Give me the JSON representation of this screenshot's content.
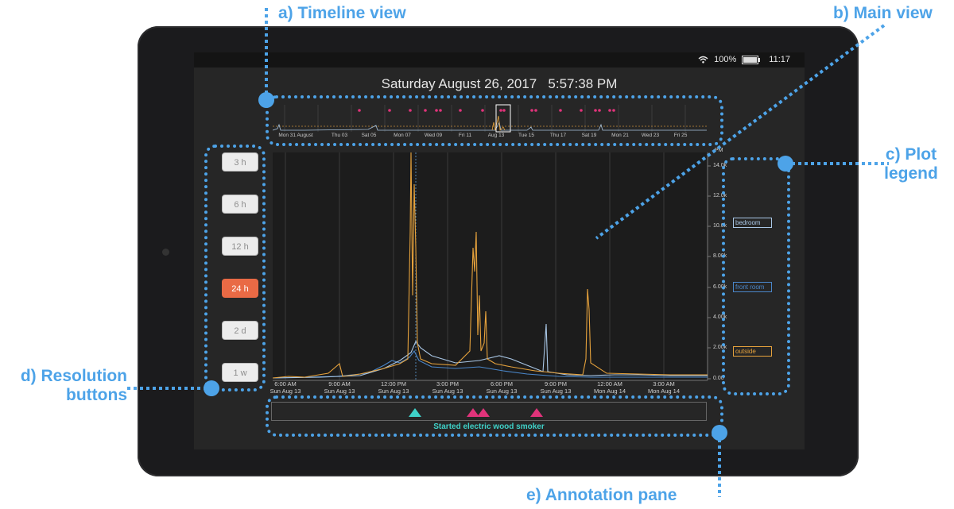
{
  "device": {
    "status": {
      "battery": "100%",
      "time": "11:17"
    },
    "datetime": "Saturday August 26, 2017   5:57:38 PM"
  },
  "timeline": {
    "labels": [
      "Mon 31 August",
      "Thu 03",
      "Sat 05",
      "Mon 07",
      "Wed 09",
      "Fri 11",
      "Aug 13",
      "Tue 15",
      "Thu 17",
      "Sat 19",
      "Mon 21",
      "Wed 23",
      "Fri 25"
    ]
  },
  "resolution_buttons": [
    {
      "label": "3 h",
      "active": false
    },
    {
      "label": "6 h",
      "active": false
    },
    {
      "label": "12 h",
      "active": false
    },
    {
      "label": "24 h",
      "active": true
    },
    {
      "label": "2 d",
      "active": false
    },
    {
      "label": "1 w",
      "active": false
    }
  ],
  "plot": {
    "y_unit": "PM",
    "y_ticks": [
      "14.0k",
      "12.0k",
      "10.0k",
      "8.00k",
      "6.00k",
      "4.00k",
      "2.00k",
      "0.00"
    ],
    "x_ticks": [
      {
        "time": "6:00 AM",
        "date": "Sun Aug 13"
      },
      {
        "time": "9:00 AM",
        "date": "Sun Aug 13"
      },
      {
        "time": "12:00 PM",
        "date": "Sun Aug 13"
      },
      {
        "time": "3:00 PM",
        "date": "Sun Aug 13"
      },
      {
        "time": "6:00 PM",
        "date": "Sun Aug 13"
      },
      {
        "time": "9:00 PM",
        "date": "Sun Aug 13"
      },
      {
        "time": "12:00 AM",
        "date": "Mon Aug 14"
      },
      {
        "time": "3:00 AM",
        "date": "Mon Aug 14"
      }
    ],
    "colors": {
      "bedroom": "#a9c7e6",
      "front room": "#4a86c9",
      "outside": "#e6a23c"
    }
  },
  "legend": [
    {
      "label": "bedroom",
      "color": "#a9c7e6"
    },
    {
      "label": "front room",
      "color": "#4a86c9"
    },
    {
      "label": "outside",
      "color": "#e6a23c"
    }
  ],
  "annotation": {
    "text": "Started electric wood smoker",
    "text_color": "#3fd1c8"
  },
  "callouts": {
    "timeline": "a) Timeline view",
    "main": "b) Main view",
    "legend_line1": "c) Plot",
    "legend_line2": "legend",
    "resolution_line1": "d) Resolution",
    "resolution_line2": "buttons",
    "annotation": "e) Annotation pane"
  }
}
